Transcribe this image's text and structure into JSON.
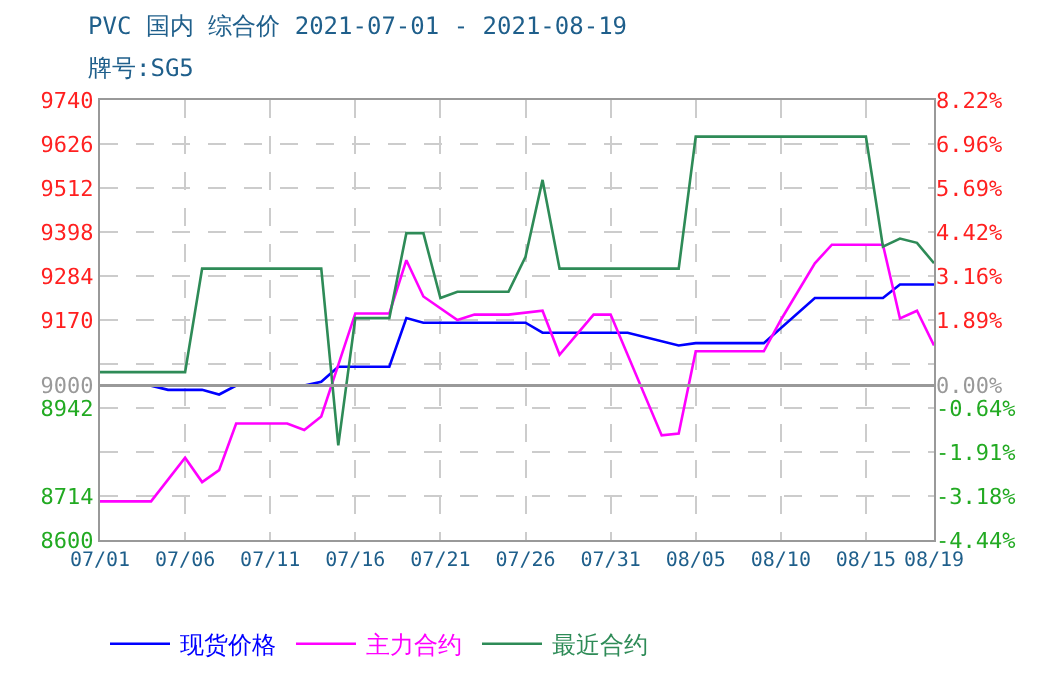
{
  "chart_data": {
    "type": "line",
    "title": "PVC 国内 综合价 2021-07-01 - 2021-08-19",
    "subtitle": "牌号:SG5",
    "xlim": [
      "2021-07-01",
      "2021-08-19"
    ],
    "xticks": [
      {
        "value": "2021-07-01",
        "label": "07/01"
      },
      {
        "value": "2021-07-06",
        "label": "07/06"
      },
      {
        "value": "2021-07-11",
        "label": "07/11"
      },
      {
        "value": "2021-07-16",
        "label": "07/16"
      },
      {
        "value": "2021-07-21",
        "label": "07/21"
      },
      {
        "value": "2021-07-26",
        "label": "07/26"
      },
      {
        "value": "2021-07-31",
        "label": "07/31"
      },
      {
        "value": "2021-08-05",
        "label": "08/05"
      },
      {
        "value": "2021-08-10",
        "label": "08/10"
      },
      {
        "value": "2021-08-15",
        "label": "08/15"
      },
      {
        "value": "2021-08-19",
        "label": "08/19"
      }
    ],
    "ylim": [
      8600,
      9740
    ],
    "yticks": [
      9740,
      9626,
      9512,
      9398,
      9284,
      9170,
      {
        "value": 9056,
        "label": null
      },
      9000,
      8942,
      {
        "value": 8828,
        "label": null
      },
      8714,
      8600
    ],
    "y2lim": [
      -4.44,
      8.22
    ],
    "y2ticks": [
      {
        "value": 8.22,
        "label": "8.22%"
      },
      {
        "value": 6.96,
        "label": "6.96%"
      },
      {
        "value": 5.69,
        "label": "5.69%"
      },
      {
        "value": 4.42,
        "label": "4.42%"
      },
      {
        "value": 3.16,
        "label": "3.16%"
      },
      {
        "value": 1.89,
        "label": "1.89%"
      },
      {
        "value": 0,
        "label": "0.00%"
      },
      {
        "value": -0.64,
        "label": "-0.64%"
      },
      {
        "value": -1.91,
        "label": "-1.91%"
      },
      {
        "value": -3.18,
        "label": "-3.18%"
      },
      {
        "value": -4.44,
        "label": "-4.44%"
      }
    ],
    "grid": true,
    "legend": "bottom",
    "ref_lines": [
      {
        "axis": "y",
        "value": 9000,
        "color": "#999999",
        "line_style": "solid"
      }
    ],
    "series": [
      {
        "name": "现货价格",
        "color": "#0000ff",
        "x": [
          "2021-07-01",
          "2021-07-04",
          "2021-07-05",
          "2021-07-07",
          "2021-07-08",
          "2021-07-09",
          "2021-07-13",
          "2021-07-14",
          "2021-07-15",
          "2021-07-18",
          "2021-07-19",
          "2021-07-20",
          "2021-07-26",
          "2021-07-27",
          "2021-08-01",
          "2021-08-04",
          "2021-08-05",
          "2021-08-09",
          "2021-08-12",
          "2021-08-16",
          "2021-08-17",
          "2021-08-19"
        ],
        "values": [
          9000,
          9000,
          8989,
          8989,
          8977,
          9000,
          9000,
          9010,
          9049,
          9049,
          9175,
          9163,
          9163,
          9137,
          9137,
          9104,
          9110,
          9110,
          9227,
          9227,
          9262,
          9262
        ]
      },
      {
        "name": "主力合约",
        "color": "#ff00ff",
        "x": [
          "2021-07-01",
          "2021-07-04",
          "2021-07-06",
          "2021-07-07",
          "2021-07-08",
          "2021-07-09",
          "2021-07-12",
          "2021-07-13",
          "2021-07-14",
          "2021-07-16",
          "2021-07-18",
          "2021-07-19",
          "2021-07-20",
          "2021-07-22",
          "2021-07-23",
          "2021-07-25",
          "2021-07-27",
          "2021-07-28",
          "2021-07-30",
          "2021-07-31",
          "2021-08-03",
          "2021-08-04",
          "2021-08-05",
          "2021-08-09",
          "2021-08-10",
          "2021-08-12",
          "2021-08-13",
          "2021-08-16",
          "2021-08-17",
          "2021-08-18",
          "2021-08-19"
        ],
        "values": [
          8700,
          8700,
          8813,
          8750,
          8781,
          8902,
          8902,
          8885,
          8920,
          9187,
          9187,
          9325,
          9231,
          9170,
          9184,
          9184,
          9194,
          9080,
          9184,
          9184,
          8871,
          8876,
          9089,
          9089,
          9170,
          9317,
          9365,
          9365,
          9174,
          9194,
          9104
        ]
      },
      {
        "name": "最近合约",
        "color": "#2e8b57",
        "x": [
          "2021-07-01",
          "2021-07-06",
          "2021-07-07",
          "2021-07-14",
          "2021-07-15",
          "2021-07-16",
          "2021-07-18",
          "2021-07-19",
          "2021-07-20",
          "2021-07-21",
          "2021-07-22",
          "2021-07-25",
          "2021-07-26",
          "2021-07-27",
          "2021-07-28",
          "2021-08-04",
          "2021-08-05",
          "2021-08-15",
          "2021-08-16",
          "2021-08-17",
          "2021-08-18",
          "2021-08-19"
        ],
        "values": [
          9035,
          9035,
          9303,
          9303,
          8845,
          9175,
          9175,
          9395,
          9395,
          9227,
          9243,
          9243,
          9334,
          9533,
          9303,
          9303,
          9645,
          9645,
          9360,
          9381,
          9370,
          9317
        ]
      }
    ]
  }
}
